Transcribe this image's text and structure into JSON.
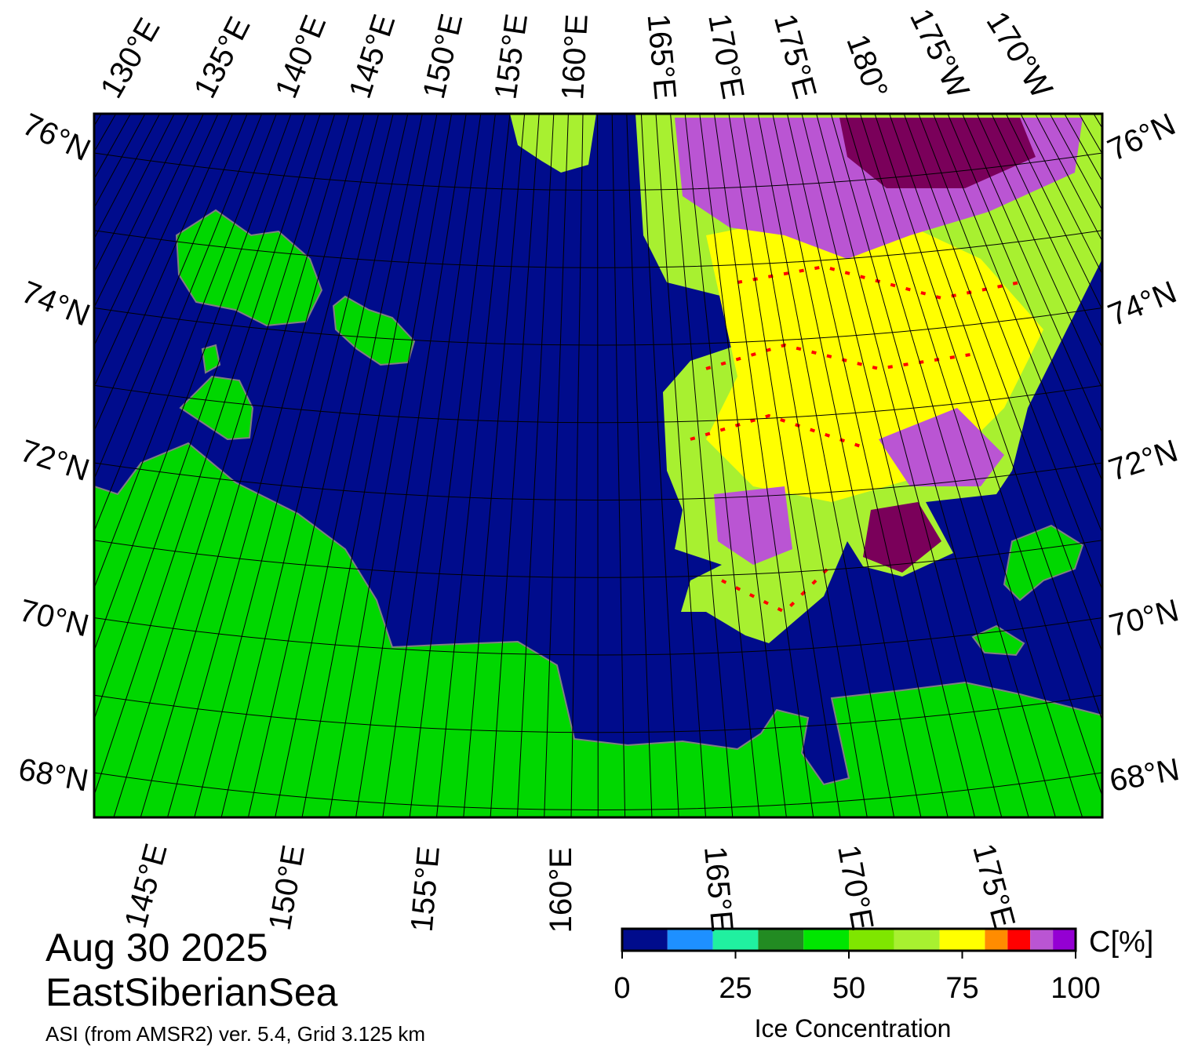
{
  "title": "Aug 30 2025",
  "region": "EastSiberianSea",
  "source": "ASI (from AMSR2) ver. 5.4,  Grid 3.125 km",
  "graticule": {
    "top_labels": [
      "130°E",
      "135°E",
      "140°E",
      "145°E",
      "150°E",
      "155°E",
      "160°E",
      "165°E",
      "170°E",
      "175°E",
      "180°",
      "175°W",
      "170°W"
    ],
    "bottom_labels": [
      "145°E",
      "150°E",
      "155°E",
      "160°E",
      "165°E",
      "170°E",
      "175°E"
    ],
    "left_labels": [
      "76°N",
      "74°N",
      "72°N",
      "70°N",
      "68°N"
    ],
    "right_labels": [
      "76°N",
      "74°N",
      "72°N",
      "70°N",
      "68°N"
    ]
  },
  "colorbar": {
    "label": "Ice Concentration",
    "unit": "C[%]",
    "lim": [
      0,
      100
    ],
    "ticks": [
      0,
      25,
      50,
      75,
      100
    ],
    "bounds": [
      0,
      10,
      20,
      30,
      40,
      50,
      60,
      70,
      80,
      85,
      90,
      95,
      100
    ],
    "colors": [
      "#000c8c",
      "#1e90ff",
      "#20f0a0",
      "#228b22",
      "#00e600",
      "#7fe600",
      "#a8f030",
      "#ffff00",
      "#ff8c00",
      "#ff0000",
      "#ba55d3",
      "#9400d3"
    ]
  }
}
